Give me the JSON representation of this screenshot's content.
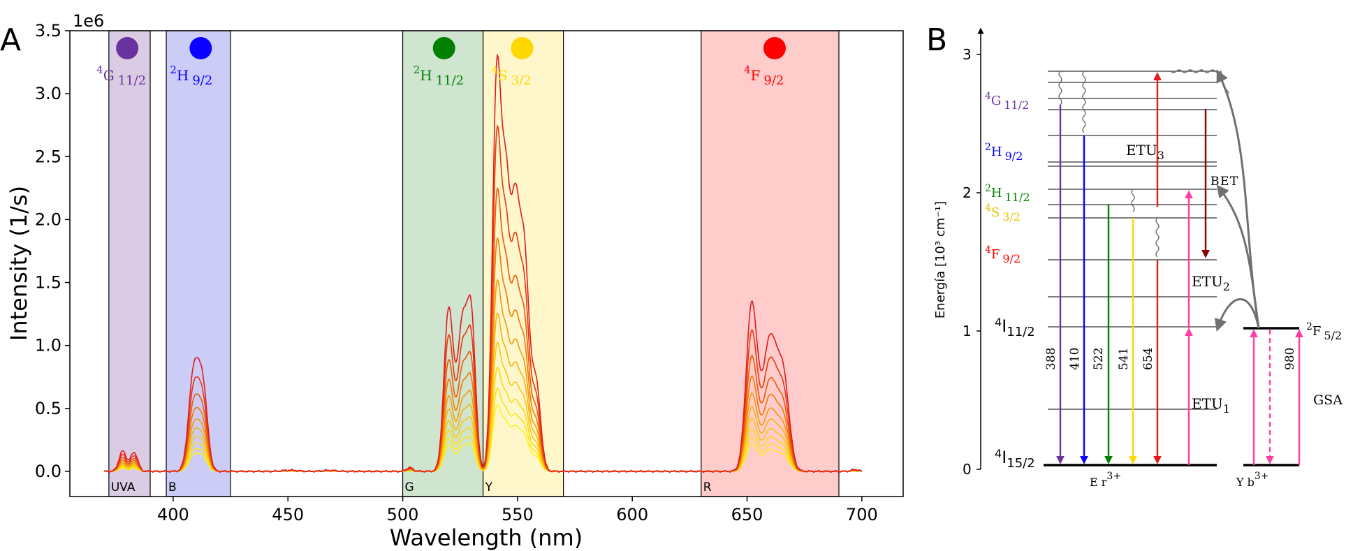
{
  "chart_data": [
    {
      "panel": "A",
      "type": "line",
      "xlabel": "Wavelength (nm)",
      "ylabel": "Intensity (1/s)",
      "y_multiplier": "1e6",
      "xlim": [
        355,
        718
      ],
      "ylim": [
        -0.2,
        3.5
      ],
      "x_ticks": [
        400,
        450,
        500,
        550,
        600,
        650,
        700
      ],
      "y_ticks": [
        0.0,
        0.5,
        1.0,
        1.5,
        2.0,
        2.5,
        3.0,
        3.5
      ],
      "grid": false,
      "bands": [
        {
          "label": "UVA",
          "range": [
            372,
            390
          ],
          "color": "#d9cce3"
        },
        {
          "label": "B",
          "range": [
            397,
            425
          ],
          "color": "#cccdf7"
        },
        {
          "label": "G",
          "range": [
            500,
            535
          ],
          "color": "#cfe5cf"
        },
        {
          "label": "Y",
          "range": [
            535,
            570
          ],
          "color": "#fff7cc"
        },
        {
          "label": "R",
          "range": [
            630,
            690
          ],
          "color": "#ffcccc"
        }
      ],
      "markers": [
        {
          "x": 380,
          "color": "#6a329f",
          "label_sup": "4",
          "label_main": "G",
          "label_sub": "11/2"
        },
        {
          "x": 412,
          "color": "#0a00ff",
          "label_sup": "2",
          "label_main": "H",
          "label_sub": "9/2"
        },
        {
          "x": 518,
          "color": "#007f00",
          "label_sup": "2",
          "label_main": "H",
          "label_sub": "11/2"
        },
        {
          "x": 552,
          "color": "#ffd700",
          "label_sup": "4",
          "label_main": "S",
          "label_sub": "3/2"
        },
        {
          "x": 662,
          "color": "#ff0000",
          "label_sup": "4",
          "label_main": "F",
          "label_sub": "9/2"
        }
      ],
      "series_scales": [
        1.0,
        0.83,
        0.68,
        0.56,
        0.46,
        0.38,
        0.31,
        0.25,
        0.2,
        0.16
      ],
      "series_colors": [
        "#e41a1c",
        "#e8380d",
        "#ec5a06",
        "#f07a04",
        "#f49a0a",
        "#f6b410",
        "#f8c814",
        "#fad818",
        "#fce41c",
        "#fdf020"
      ],
      "peaks_top_series": [
        {
          "x": 378,
          "y": 0.16,
          "w": 1.6
        },
        {
          "x": 383,
          "y": 0.15,
          "w": 1.6
        },
        {
          "x": 409,
          "y": 0.78,
          "w": 2.2
        },
        {
          "x": 413,
          "y": 0.62,
          "w": 2.0
        },
        {
          "x": 503,
          "y": 0.03,
          "w": 1.5
        },
        {
          "x": 520,
          "y": 1.28,
          "w": 2.0
        },
        {
          "x": 526,
          "y": 1.15,
          "w": 2.2
        },
        {
          "x": 530,
          "y": 1.1,
          "w": 1.8
        },
        {
          "x": 541,
          "y": 3.1,
          "w": 1.9
        },
        {
          "x": 545,
          "y": 2.0,
          "w": 1.8
        },
        {
          "x": 549,
          "y": 1.9,
          "w": 1.9
        },
        {
          "x": 553,
          "y": 1.65,
          "w": 2.0
        },
        {
          "x": 558,
          "y": 0.7,
          "w": 2.0
        },
        {
          "x": 652,
          "y": 1.3,
          "w": 2.4
        },
        {
          "x": 660,
          "y": 1.05,
          "w": 3.2
        },
        {
          "x": 666,
          "y": 0.65,
          "w": 2.5
        },
        {
          "x": 451,
          "y": 0.01,
          "w": 3.0
        },
        {
          "x": 468,
          "y": 0.008,
          "w": 3.0
        },
        {
          "x": 697,
          "y": 0.015,
          "w": 1.5
        }
      ]
    },
    {
      "panel": "B",
      "type": "diagram",
      "ylabel": "Energía [10³ cm⁻¹]",
      "y_ticks": [
        0,
        1,
        2,
        3
      ],
      "host_label": "E r",
      "host_sup": "3+",
      "dopant_label": "Y b",
      "dopant_sup": "3+",
      "levels_left": [
        {
          "sup": "4",
          "main": "G",
          "sub": "11/2",
          "color": "#6a329f"
        },
        {
          "sup": "2",
          "main": "H",
          "sub": "9/2",
          "color": "#0a00ff"
        },
        {
          "sup": "2",
          "main": "H",
          "sub": "11/2",
          "color": "#007f00"
        },
        {
          "sup": "4",
          "main": "S",
          "sub": "3/2",
          "color": "#e8c000"
        },
        {
          "sup": "4",
          "main": "F",
          "sub": "9/2",
          "color": "#ff0000"
        },
        {
          "sup": "4",
          "main": "I",
          "sub": "11/2",
          "color": "#000000"
        },
        {
          "sup": "4",
          "main": "I",
          "sub": "15/2",
          "color": "#000000"
        }
      ],
      "yb_level": {
        "sup": "2",
        "main": "F",
        "sub": "5/2"
      },
      "emissions": [
        {
          "nm": "388",
          "color": "#6a329f"
        },
        {
          "nm": "410",
          "color": "#0a00ff"
        },
        {
          "nm": "522",
          "color": "#007f00"
        },
        {
          "nm": "541",
          "color": "#ffd700"
        },
        {
          "nm": "654",
          "color": "#e41a1c"
        }
      ],
      "yb_excitation": "980",
      "process_labels": {
        "etu3_main": "ETU",
        "etu3_sub": "3",
        "bet": "BET",
        "etu2_main": "ETU",
        "etu2_sub": "2",
        "etu1_main": "ETU",
        "etu1_sub": "1",
        "gsa": "GSA"
      },
      "colors": {
        "pink": "#ff3fa4",
        "dark_red": "#8b0000",
        "gray": "#707070"
      }
    }
  ],
  "panel_labels": {
    "a": "A",
    "b": "B"
  }
}
